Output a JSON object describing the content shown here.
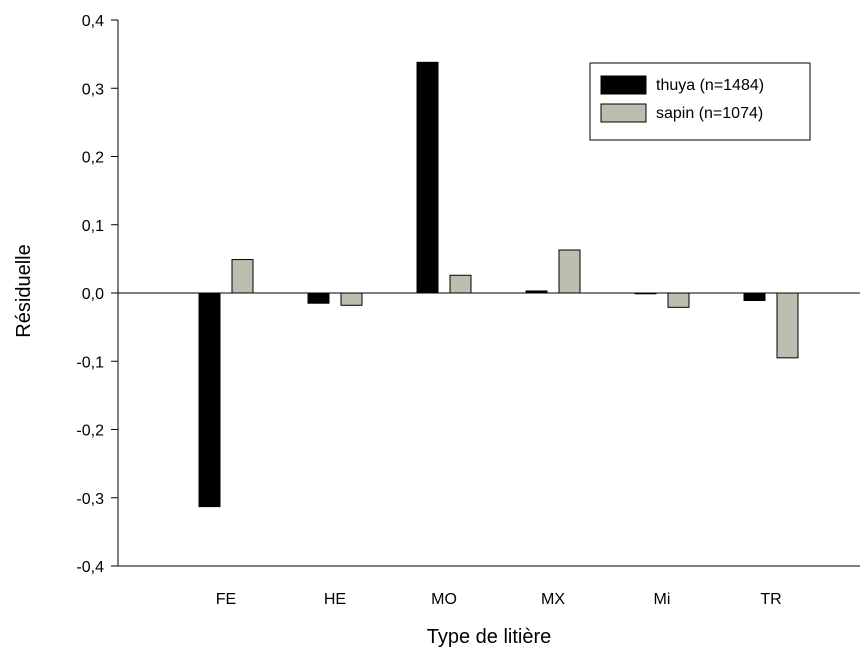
{
  "chart_data": {
    "type": "bar",
    "xlabel": "Type de litière",
    "ylabel": "Résiduelle",
    "categories": [
      "FE",
      "HE",
      "MO",
      "MX",
      "Mi",
      "TR"
    ],
    "series": [
      {
        "name": "thuya (n=1484)",
        "color": "#000000",
        "values": [
          -0.313,
          -0.015,
          0.338,
          0.003,
          -0.001,
          -0.011
        ]
      },
      {
        "name": "sapin (n=1074)",
        "color": "#bdbdb0",
        "values": [
          0.049,
          -0.018,
          0.026,
          0.063,
          -0.021,
          -0.095
        ]
      }
    ],
    "ylim": [
      -0.4,
      0.4
    ],
    "yticks": [
      -0.4,
      -0.3,
      -0.2,
      -0.1,
      0.0,
      0.1,
      0.2,
      0.3,
      0.4
    ],
    "ytick_labels": [
      "-0,4",
      "-0,3",
      "-0,2",
      "-0,1",
      "0,0",
      "0,1",
      "0,2",
      "0,3",
      "0,4"
    ],
    "grid": false,
    "legend_position": "top-right"
  }
}
